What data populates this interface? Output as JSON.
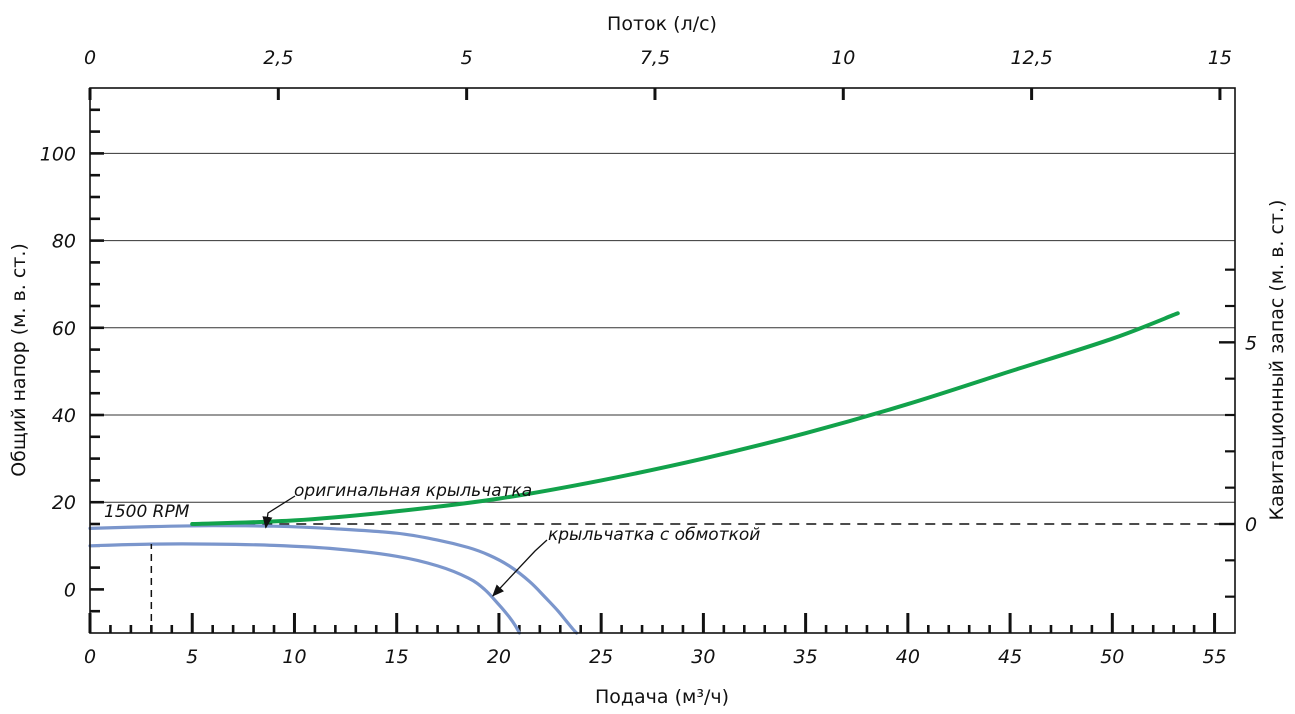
{
  "chart_data": {
    "type": "line",
    "title": "",
    "xlabel": "Подача (м³/ч)",
    "ylabel": "Общий напор (м. в. ст.)",
    "x2label": "Поток (л/с)",
    "y2label": "Кавитационный запас (м. в. ст.)",
    "xlim": [
      0,
      56
    ],
    "ylim": [
      -10,
      115
    ],
    "x2lim": [
      0,
      15.2
    ],
    "y2lim": [
      -3,
      12
    ],
    "x_ticks": [
      {
        "value": 0,
        "label": "0"
      },
      {
        "value": 5,
        "label": "5"
      },
      {
        "value": 10,
        "label": "10"
      },
      {
        "value": 15,
        "label": "15"
      },
      {
        "value": 20,
        "label": "20"
      },
      {
        "value": 25,
        "label": "25"
      },
      {
        "value": 30,
        "label": "30"
      },
      {
        "value": 35,
        "label": "35"
      },
      {
        "value": 40,
        "label": "40"
      },
      {
        "value": 45,
        "label": "45"
      },
      {
        "value": 50,
        "label": "50"
      },
      {
        "value": 55,
        "label": "55"
      }
    ],
    "y_ticks": [
      {
        "value": 0,
        "label": "0"
      },
      {
        "value": 20,
        "label": "20"
      },
      {
        "value": 40,
        "label": "40"
      },
      {
        "value": 60,
        "label": "60"
      },
      {
        "value": 80,
        "label": "80"
      },
      {
        "value": 100,
        "label": "100"
      }
    ],
    "x2_ticks": [
      {
        "value": 0,
        "label": "0"
      },
      {
        "value": 2.5,
        "label": "2,5"
      },
      {
        "value": 5,
        "label": "5"
      },
      {
        "value": 7.5,
        "label": "7,5"
      },
      {
        "value": 10,
        "label": "10"
      },
      {
        "value": 12.5,
        "label": "12,5"
      },
      {
        "value": 15,
        "label": "15"
      }
    ],
    "y2_ticks": [
      {
        "value": 0,
        "label": "0"
      },
      {
        "value": 5,
        "label": "5"
      }
    ],
    "grid": {
      "horizontal_at": [
        20,
        40,
        60,
        80,
        100
      ]
    },
    "series": [
      {
        "name": "оригинальная крыльчатка",
        "axis": "left",
        "color": "#7b96cc",
        "x": [
          0,
          3,
          6,
          9,
          12,
          15,
          17,
          18.5,
          19.5,
          20.5,
          21.5,
          22.3,
          22.9,
          23.3,
          23.6,
          23.8
        ],
        "y": [
          14,
          14.4,
          14.6,
          14.5,
          13.9,
          12.9,
          11.3,
          9.6,
          7.9,
          5.4,
          1.8,
          -2.0,
          -5.0,
          -7.3,
          -9.0,
          -10
        ]
      },
      {
        "name": "крыльчатка с обмоткой",
        "axis": "left",
        "color": "#7b96cc",
        "x": [
          0,
          3,
          6,
          9,
          12,
          15,
          17,
          18.5,
          19.3,
          20,
          20.5,
          20.8,
          21.0
        ],
        "y": [
          10,
          10.4,
          10.4,
          10.1,
          9.3,
          7.6,
          5.4,
          2.6,
          0,
          -3.5,
          -6.3,
          -8.3,
          -10
        ]
      },
      {
        "name": "",
        "axis": "right",
        "color": "#12a24b",
        "x": [
          5,
          10,
          15,
          20,
          25,
          30,
          35,
          40,
          45,
          50,
          53.2
        ],
        "y": [
          0,
          0.1,
          0.35,
          0.7,
          1.2,
          1.8,
          2.5,
          3.3,
          4.2,
          5.1,
          5.8
        ]
      }
    ],
    "annotations": [
      {
        "text": "1500 RPM",
        "x": 3,
        "line_from_y": -10,
        "line_to_y": 10.4
      },
      {
        "text": "оригинальная крыльчатка",
        "arrow_to": {
          "x": 8.6,
          "y": 14.6
        }
      },
      {
        "text": "крыльчатка с обмоткой",
        "arrow_to": {
          "x": 19.7,
          "y": -1.5
        }
      }
    ],
    "npsh_zero_reference_line": {
      "y2": 0,
      "style": "dashed"
    }
  }
}
